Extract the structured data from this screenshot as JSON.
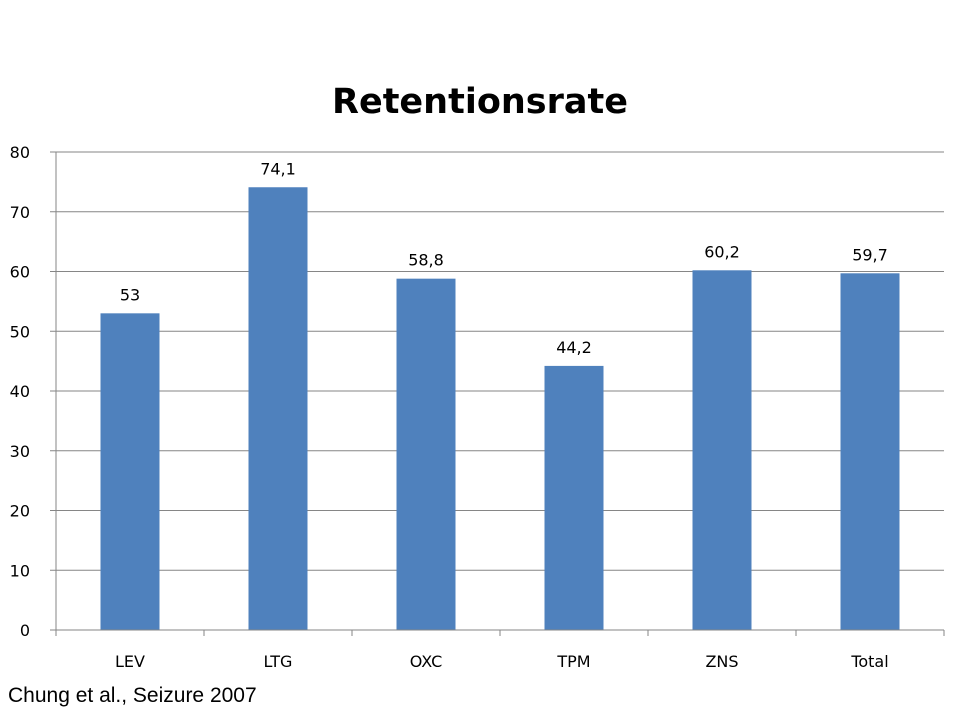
{
  "chart_data": {
    "type": "bar",
    "title": "Retentionsrate",
    "categories": [
      "LEV",
      "LTG",
      "OXC",
      "TPM",
      "ZNS",
      "Total"
    ],
    "values": [
      53,
      74.1,
      58.8,
      44.2,
      60.2,
      59.7
    ],
    "value_labels": [
      "53",
      "74,1",
      "58,8",
      "44,2",
      "60,2",
      "59,7"
    ],
    "ylim": [
      0,
      80
    ],
    "yticks": [
      0,
      10,
      20,
      30,
      40,
      50,
      60,
      70,
      80
    ],
    "xlabel": "",
    "ylabel": "",
    "grid": true,
    "legend": "none",
    "bar_color": "#4F81BD",
    "grid_color": "#868686"
  },
  "source": "Chung et al., Seizure 2007"
}
